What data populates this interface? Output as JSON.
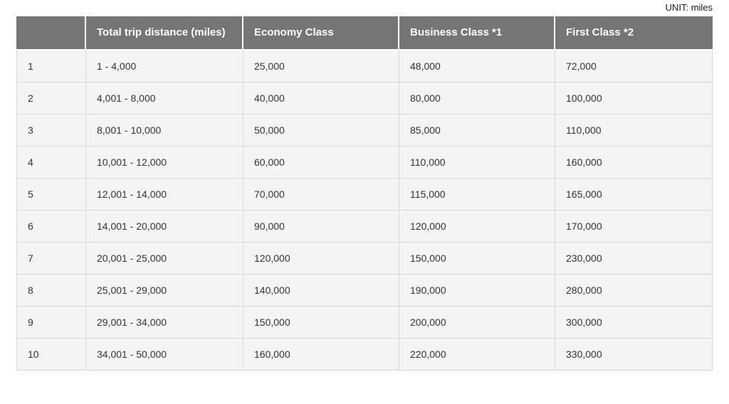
{
  "unit_label": "UNIT: miles",
  "table": {
    "column_keys": [
      "row-number",
      "distance",
      "economy",
      "business",
      "first"
    ],
    "columns": [
      "",
      "Total trip distance (miles)",
      "Economy Class",
      "Business Class *1",
      "First Class *2"
    ],
    "rows": [
      [
        "1",
        "1 - 4,000",
        "25,000",
        "48,000",
        "72,000"
      ],
      [
        "2",
        "4,001 - 8,000",
        "40,000",
        "80,000",
        "100,000"
      ],
      [
        "3",
        "8,001 - 10,000",
        "50,000",
        "85,000",
        "110,000"
      ],
      [
        "4",
        "10,001 - 12,000",
        "60,000",
        "110,000",
        "160,000"
      ],
      [
        "5",
        "12,001 - 14,000",
        "70,000",
        "115,000",
        "165,000"
      ],
      [
        "6",
        "14,001 - 20,000",
        "90,000",
        "120,000",
        "170,000"
      ],
      [
        "7",
        "20,001 - 25,000",
        "120,000",
        "150,000",
        "230,000"
      ],
      [
        "8",
        "25,001 - 29,000",
        "140,000",
        "190,000",
        "280,000"
      ],
      [
        "9",
        "29,001 - 34,000",
        "150,000",
        "200,000",
        "300,000"
      ],
      [
        "10",
        "34,001 - 50,000",
        "160,000",
        "220,000",
        "330,000"
      ]
    ]
  }
}
